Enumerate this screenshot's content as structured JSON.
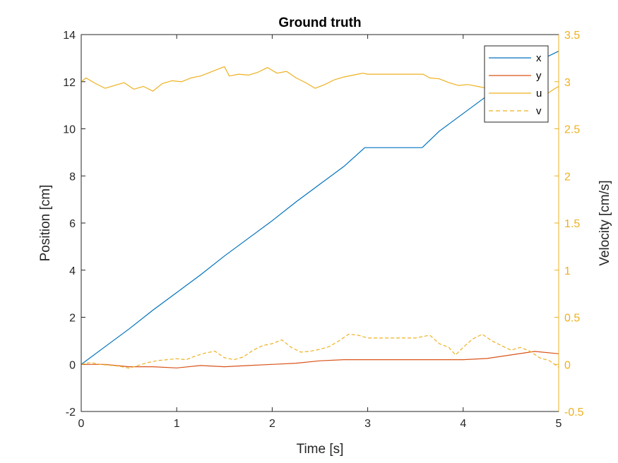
{
  "colors": {
    "x": "#0072BD",
    "y": "#D95319",
    "u": "#EDB120",
    "v": "#EDB120",
    "right_axis": "#EDB120",
    "axis": "#262626"
  },
  "chart_data": {
    "type": "line",
    "title": "Ground truth",
    "xlabel": "Time [s]",
    "ylabel": "Position [cm]",
    "ylabel_right": "Velocity [cm/s]",
    "xlim": [
      0,
      5
    ],
    "ylim": [
      -2,
      14
    ],
    "ylim_right": [
      -0.5,
      3.5
    ],
    "x_ticks": [
      "0",
      "1",
      "2",
      "3",
      "4",
      "5"
    ],
    "y_ticks": [
      "-2",
      "0",
      "2",
      "4",
      "6",
      "8",
      "10",
      "12",
      "14"
    ],
    "y_ticks_right": [
      "-0.5",
      "0",
      "0.5",
      "1",
      "1.5",
      "2",
      "2.5",
      "3",
      "3.5"
    ],
    "grid": false,
    "legend_position": "top-right",
    "series": [
      {
        "name": "x",
        "axis": "left",
        "style": "solid",
        "x": [
          0,
          0.25,
          0.5,
          0.75,
          1.0,
          1.25,
          1.5,
          1.75,
          2.0,
          2.25,
          2.5,
          2.75,
          2.97,
          3.2,
          3.4,
          3.57,
          3.75,
          4.0,
          4.25,
          4.5,
          4.75,
          5.0
        ],
        "y": [
          0.0,
          0.75,
          1.5,
          2.3,
          3.05,
          3.8,
          4.6,
          5.35,
          6.1,
          6.9,
          7.65,
          8.4,
          9.2,
          9.2,
          9.2,
          9.2,
          9.9,
          10.65,
          11.4,
          12.15,
          12.8,
          13.3
        ]
      },
      {
        "name": "y",
        "axis": "left",
        "style": "solid",
        "x": [
          0,
          0.25,
          0.5,
          0.75,
          1.0,
          1.25,
          1.5,
          1.75,
          2.0,
          2.25,
          2.5,
          2.75,
          3.0,
          3.25,
          3.5,
          3.75,
          4.0,
          4.25,
          4.5,
          4.75,
          5.0
        ],
        "y": [
          0.0,
          0.0,
          -0.1,
          -0.1,
          -0.15,
          -0.05,
          -0.1,
          -0.05,
          0.0,
          0.05,
          0.15,
          0.2,
          0.2,
          0.2,
          0.2,
          0.2,
          0.2,
          0.25,
          0.4,
          0.55,
          0.45
        ]
      },
      {
        "name": "u",
        "axis": "right",
        "style": "solid",
        "x": [
          0,
          0.05,
          0.15,
          0.25,
          0.35,
          0.45,
          0.55,
          0.65,
          0.75,
          0.85,
          0.95,
          1.05,
          1.15,
          1.25,
          1.35,
          1.45,
          1.5,
          1.55,
          1.65,
          1.75,
          1.85,
          1.95,
          2.05,
          2.15,
          2.25,
          2.35,
          2.45,
          2.55,
          2.65,
          2.75,
          2.85,
          2.95,
          3.0,
          3.2,
          3.4,
          3.58,
          3.65,
          3.75,
          3.85,
          3.95,
          4.05,
          4.15,
          4.25,
          4.35,
          4.45,
          4.55,
          4.65,
          4.75,
          4.85,
          4.95,
          5.0
        ],
        "y": [
          3.0,
          3.04,
          2.98,
          2.93,
          2.96,
          2.99,
          2.92,
          2.95,
          2.9,
          2.98,
          3.01,
          3.0,
          3.04,
          3.06,
          3.1,
          3.14,
          3.16,
          3.06,
          3.08,
          3.07,
          3.1,
          3.15,
          3.09,
          3.11,
          3.04,
          2.99,
          2.93,
          2.97,
          3.02,
          3.05,
          3.07,
          3.09,
          3.08,
          3.08,
          3.08,
          3.08,
          3.04,
          3.03,
          2.99,
          2.96,
          2.97,
          2.95,
          2.93,
          2.95,
          2.91,
          2.97,
          2.93,
          2.95,
          2.85,
          2.92,
          2.95
        ]
      },
      {
        "name": "v",
        "axis": "right",
        "style": "dashed",
        "x": [
          0,
          0.1,
          0.2,
          0.3,
          0.4,
          0.5,
          0.6,
          0.7,
          0.8,
          0.9,
          1.0,
          1.1,
          1.2,
          1.3,
          1.4,
          1.5,
          1.6,
          1.7,
          1.8,
          1.9,
          2.0,
          2.1,
          2.2,
          2.3,
          2.4,
          2.5,
          2.6,
          2.7,
          2.8,
          2.9,
          3.0,
          3.25,
          3.5,
          3.65,
          3.75,
          3.85,
          3.92,
          4.0,
          4.1,
          4.2,
          4.3,
          4.4,
          4.5,
          4.6,
          4.7,
          4.8,
          4.9,
          5.0
        ],
        "y": [
          0.0,
          0.02,
          0.0,
          -0.01,
          -0.02,
          -0.04,
          -0.01,
          0.02,
          0.04,
          0.05,
          0.06,
          0.05,
          0.09,
          0.12,
          0.14,
          0.07,
          0.05,
          0.08,
          0.15,
          0.2,
          0.22,
          0.26,
          0.18,
          0.13,
          0.14,
          0.16,
          0.19,
          0.25,
          0.32,
          0.31,
          0.28,
          0.28,
          0.28,
          0.31,
          0.22,
          0.18,
          0.1,
          0.18,
          0.27,
          0.32,
          0.25,
          0.2,
          0.15,
          0.18,
          0.14,
          0.07,
          0.04,
          -0.03
        ]
      }
    ]
  }
}
